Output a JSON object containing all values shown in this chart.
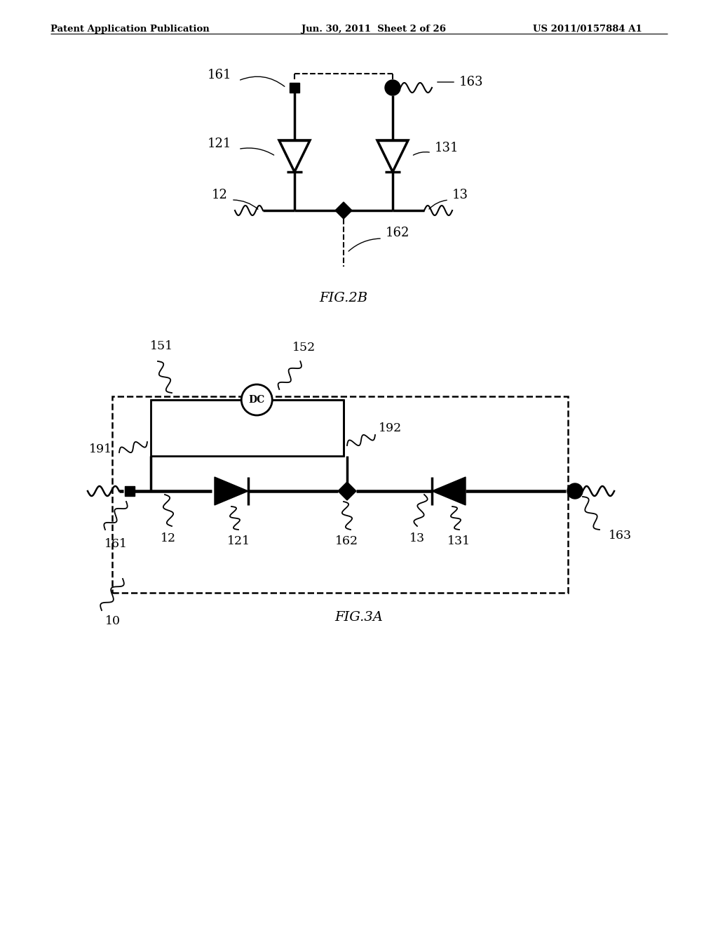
{
  "bg_color": "#ffffff",
  "header_left": "Patent Application Publication",
  "header_center": "Jun. 30, 2011  Sheet 2 of 26",
  "header_right": "US 2011/0157884 A1",
  "fig2b_label": "FIG.2B",
  "fig3a_label": "FIG.3A",
  "line_color": "#000000",
  "line_width": 2.5
}
